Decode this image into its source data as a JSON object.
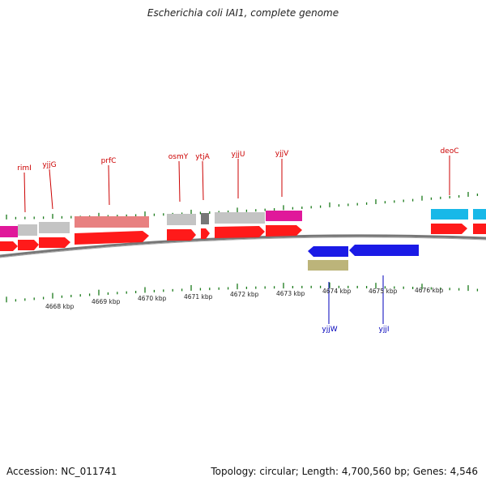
{
  "title": "Escherichia coli IAI1, complete genome",
  "footer": {
    "accession": "Accession: NC_011741",
    "summary": "Topology: circular; Length: 4,700,560 bp; Genes: 4,546"
  },
  "colors": {
    "label_top": "#cc0000",
    "label_bottom": "#0000bb",
    "tick": "#1a7a1a",
    "backbone": "#777777",
    "cds_red": "#ff1a1a",
    "gene_gray": "#c4c4c4",
    "gene_magenta": "#e0189a",
    "gene_salmon": "#e88080",
    "gene_cyan": "#18b8e8",
    "gene_blue": "#1a1ae6",
    "gene_olive": "#bcb47a",
    "gene_darkgray": "#777777"
  },
  "kbp_labels": [
    "4668 kbp",
    "4669 kbp",
    "4670 kbp",
    "4671 kbp",
    "4672 kbp",
    "4673 kbp",
    "4674 kbp",
    "4675 kbp",
    "4676 kbp"
  ],
  "genes_top": [
    "rimI",
    "yjjG",
    "prfC",
    "osmY",
    "ytjA",
    "yjjU",
    "yjjV",
    "deoC"
  ],
  "genes_bottom": [
    "yjjW",
    "yjjI"
  ]
}
